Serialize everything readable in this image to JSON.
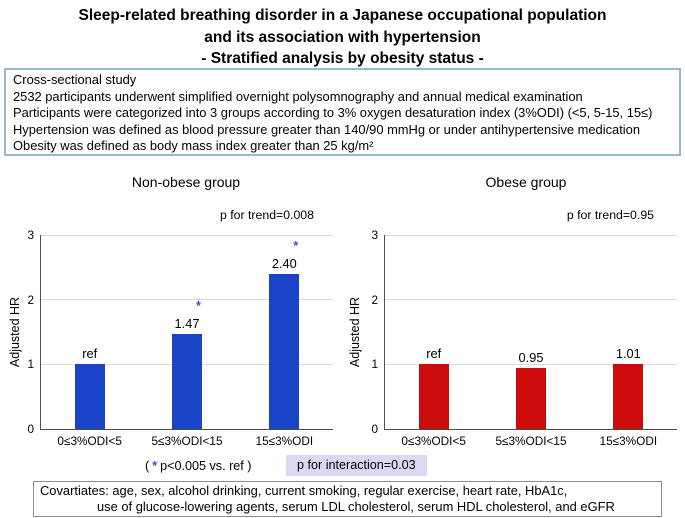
{
  "title": {
    "lines": [
      "Sleep-related breathing disorder in a Japanese occupational population",
      "and its association with hypertension",
      "- Stratified analysis by obesity status -"
    ]
  },
  "study_box": {
    "lines": [
      "Cross-sectional study",
      "2532 participants underwent simplified overnight polysomnography and annual medical examination",
      "Participants were categorized into 3 groups according to 3% oxygen desaturation index (3%ODI) (<5, 5-15, 15≤)",
      "Hypertension was defined as blood pressure greater than 140/90 mmHg or under antihypertensive medication",
      "Obesity was defined as body mass index greater than 25 kg/m²"
    ]
  },
  "chart_data": [
    {
      "type": "bar",
      "title": "Non-obese group",
      "p_trend_label": "p for trend=0.008",
      "ylabel": "Adjusted HR",
      "xlabel": "",
      "ylim": [
        0,
        3
      ],
      "yticks": [
        0,
        1,
        2,
        3
      ],
      "grid": true,
      "legend": "none",
      "categories": [
        "0≤3%ODI<5",
        "5≤3%ODI<15",
        "15≤3%ODI"
      ],
      "values": [
        1.0,
        1.47,
        2.4
      ],
      "bar_labels": [
        "ref",
        "1.47",
        "2.40"
      ],
      "significant": [
        false,
        true,
        true
      ],
      "bar_color": "#1b45c7"
    },
    {
      "type": "bar",
      "title": "Obese group",
      "p_trend_label": "p for trend=0.95",
      "ylabel": "Adjusted HR",
      "xlabel": "",
      "ylim": [
        0,
        3
      ],
      "yticks": [
        0,
        1,
        2,
        3
      ],
      "grid": true,
      "legend": "none",
      "categories": [
        "0≤3%ODI<5",
        "5≤3%ODI<15",
        "15≤3%ODI"
      ],
      "values": [
        1.0,
        0.95,
        1.01
      ],
      "bar_labels": [
        "ref",
        "0.95",
        "1.01"
      ],
      "significant": [
        false,
        false,
        false
      ],
      "bar_color": "#cc0b0b"
    }
  ],
  "footnotes": {
    "significance_open": "(",
    "significance_star": "*",
    "significance_text": "p<0.005 vs. ref )",
    "interaction": "p for interaction=0.03"
  },
  "covariates_box": {
    "lines": [
      "Covartiates: age, sex, alcohol drinking, current smoking, regular exercise, heart rate, HbA1c,",
      "use of glucose-lowering agents, serum LDL cholesterol, serum HDL cholesterol, and eGFR"
    ]
  },
  "colors": {
    "asterisk": "#4343e8",
    "interaction_highlight": "#dbd8f1",
    "study_box_border": "#96bccb",
    "gridline": "#d9d9d9",
    "axis": "#4d4d4d"
  }
}
